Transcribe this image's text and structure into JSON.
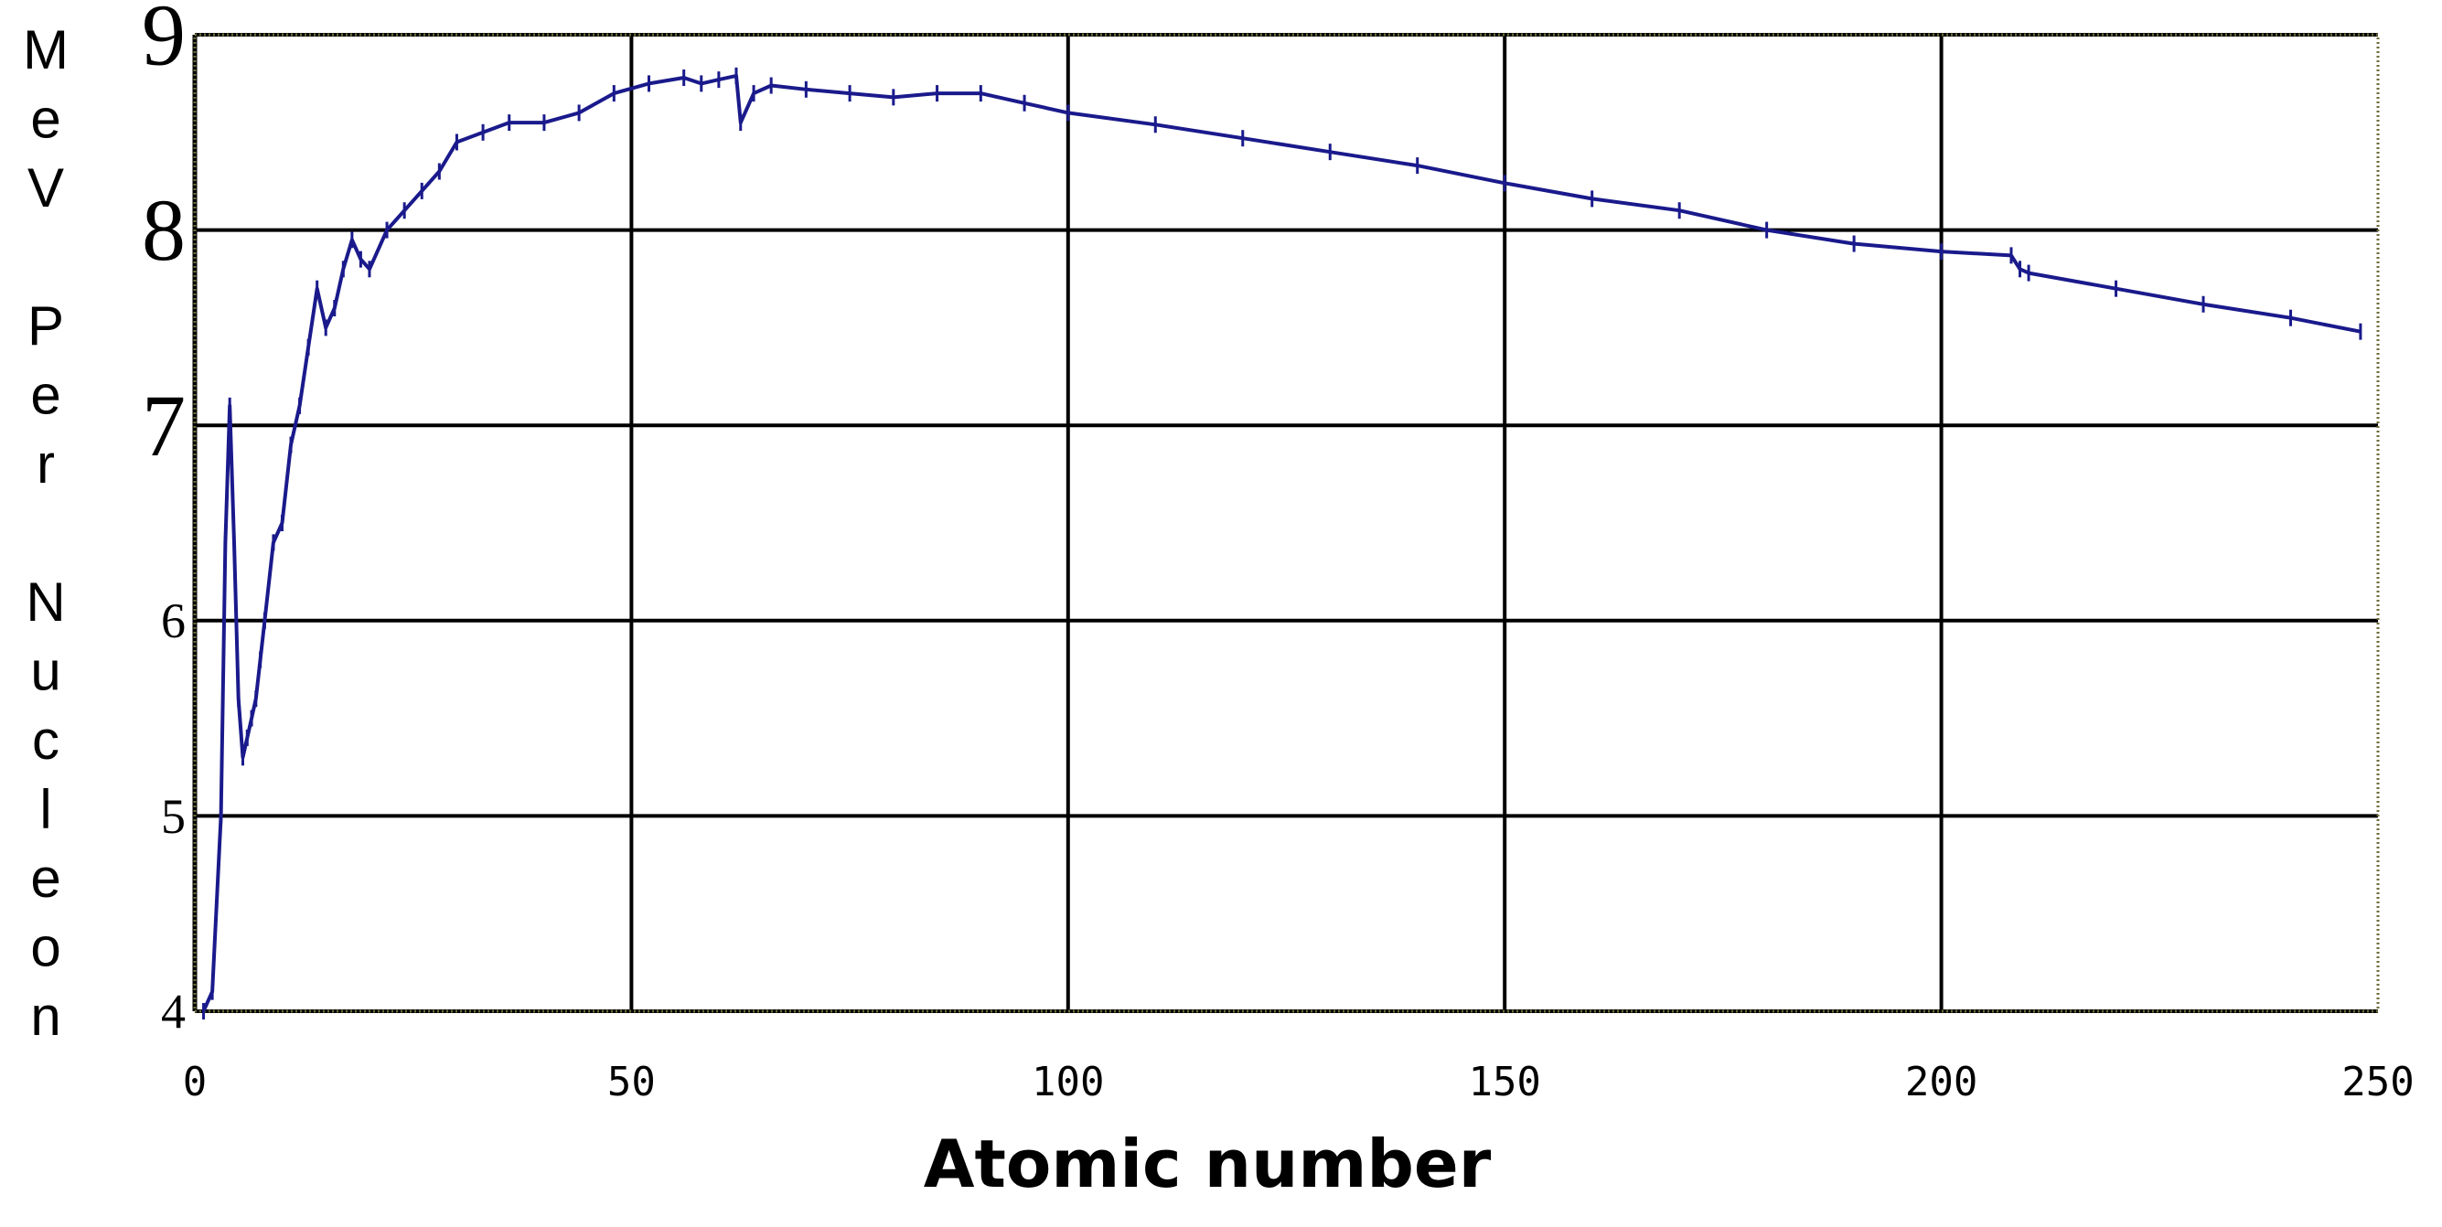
{
  "chart_data": {
    "type": "line",
    "title": "",
    "xlabel": "Atomic number",
    "ylabel": "MeV Per Nucleon",
    "ylabel_lines": [
      "M",
      "e",
      "V",
      "",
      "P",
      "e",
      "r",
      "",
      "N",
      "u",
      "c",
      "l",
      "e",
      "o",
      "n"
    ],
    "xlim": [
      0,
      250
    ],
    "ylim": [
      4,
      9
    ],
    "xticks": [
      0,
      50,
      100,
      150,
      200,
      250
    ],
    "xtick_labels": [
      "0",
      "50",
      "100",
      "150",
      "200",
      "250"
    ],
    "yticks": [
      4,
      5,
      6,
      7,
      8,
      9
    ],
    "ytick_labels": [
      "4",
      "5",
      "6",
      "7",
      "8",
      "9"
    ],
    "grid": true,
    "legend": "none",
    "series": [
      {
        "color": "#1a1a8c",
        "x": [
          1,
          2,
          3,
          3.5,
          4,
          4.5,
          5,
          5.5,
          6,
          6.5,
          7,
          7.5,
          8,
          9,
          10,
          11,
          12,
          13,
          14,
          15,
          16,
          17,
          18,
          19,
          20,
          22,
          24,
          26,
          28,
          30,
          33,
          36,
          40,
          44,
          48,
          52,
          56,
          58,
          60,
          62,
          62.5,
          64,
          66,
          70,
          75,
          80,
          85,
          90,
          95,
          100,
          110,
          120,
          130,
          140,
          150,
          160,
          170,
          180,
          190,
          200,
          208,
          209,
          210,
          220,
          230,
          240,
          248
        ],
        "y": [
          4.0,
          4.1,
          5.0,
          6.4,
          7.1,
          6.4,
          5.6,
          5.3,
          5.4,
          5.5,
          5.6,
          5.8,
          6.0,
          6.4,
          6.5,
          6.9,
          7.1,
          7.4,
          7.7,
          7.5,
          7.6,
          7.8,
          7.95,
          7.85,
          7.8,
          8.0,
          8.1,
          8.2,
          8.3,
          8.45,
          8.5,
          8.55,
          8.55,
          8.6,
          8.7,
          8.75,
          8.78,
          8.75,
          8.77,
          8.79,
          8.55,
          8.7,
          8.74,
          8.72,
          8.7,
          8.68,
          8.7,
          8.7,
          8.65,
          8.6,
          8.54,
          8.47,
          8.4,
          8.33,
          8.24,
          8.16,
          8.1,
          8.0,
          7.93,
          7.89,
          7.87,
          7.8,
          7.78,
          7.7,
          7.62,
          7.55,
          7.48
        ]
      }
    ]
  }
}
